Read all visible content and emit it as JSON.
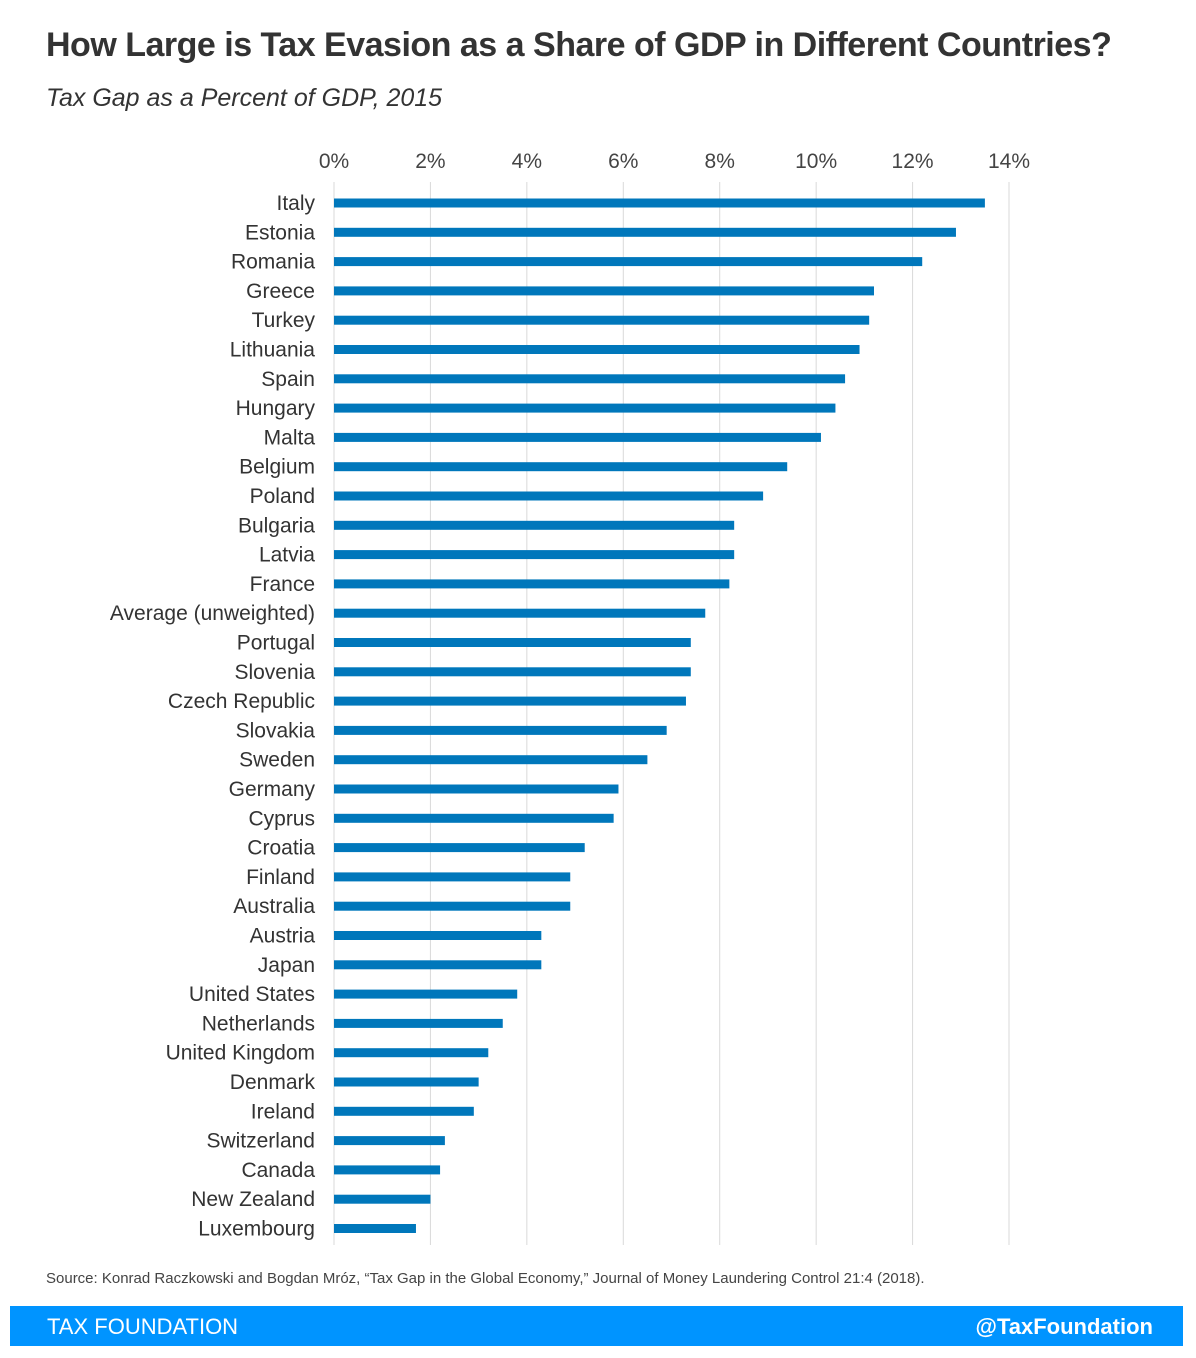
{
  "title": "How Large is Tax Evasion as a Share of GDP in Different Countries?",
  "subtitle": "Tax Gap as a Percent of GDP,  2015",
  "source": "Source: Konrad Raczkowski and Bogdan Mróz, “Tax Gap in the Global Economy,” Journal of Money Laundering Control 21:4  (2018).",
  "footer": {
    "brand": "TAX FOUNDATION",
    "handle": "@TaxFoundation"
  },
  "colors": {
    "bar": "#0077bb",
    "footer": "#0094ff",
    "grid": "#d9d9d9"
  },
  "chart_data": {
    "type": "bar",
    "orientation": "horizontal",
    "xlim": [
      0,
      14
    ],
    "ticks": [
      {
        "value": 0,
        "label": "0%"
      },
      {
        "value": 2,
        "label": "2%"
      },
      {
        "value": 4,
        "label": "4%"
      },
      {
        "value": 6,
        "label": "6%"
      },
      {
        "value": 8,
        "label": "8%"
      },
      {
        "value": 10,
        "label": "10%"
      },
      {
        "value": 12,
        "label": "12%"
      },
      {
        "value": 14,
        "label": "14%"
      }
    ],
    "axis_position": "top",
    "grid": true,
    "categories": [
      "Italy",
      "Estonia",
      "Romania",
      "Greece",
      "Turkey",
      "Lithuania",
      "Spain",
      "Hungary",
      "Malta",
      "Belgium",
      "Poland",
      "Bulgaria",
      "Latvia",
      "France",
      "Average (unweighted)",
      "Portugal",
      "Slovenia",
      "Czech Republic",
      "Slovakia",
      "Sweden",
      "Germany",
      "Cyprus",
      "Croatia",
      "Finland",
      "Australia",
      "Austria",
      "Japan",
      "United States",
      "Netherlands",
      "United Kingdom",
      "Denmark",
      "Ireland",
      "Switzerland",
      "Canada",
      "New Zealand",
      "Luxembourg"
    ],
    "values": [
      13.5,
      12.9,
      12.2,
      11.2,
      11.1,
      10.9,
      10.6,
      10.4,
      10.1,
      9.4,
      8.9,
      8.3,
      8.3,
      8.2,
      7.7,
      7.4,
      7.4,
      7.3,
      6.9,
      6.5,
      5.9,
      5.8,
      5.2,
      4.9,
      4.9,
      4.3,
      4.3,
      3.8,
      3.5,
      3.2,
      3.0,
      2.9,
      2.3,
      2.2,
      2.0,
      1.7
    ]
  }
}
